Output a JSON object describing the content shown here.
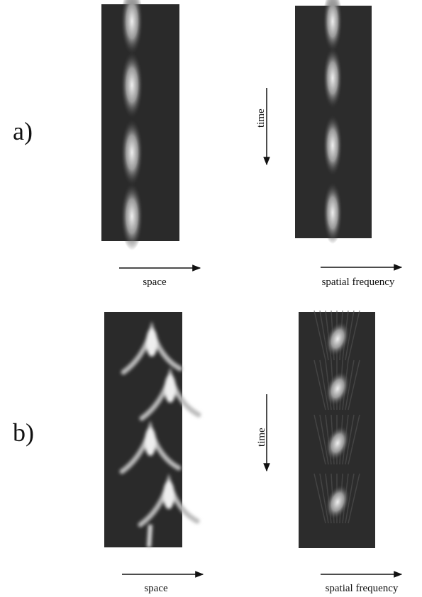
{
  "panels": [
    {
      "label": "a)",
      "time_label": "time",
      "left_axis": "space",
      "right_axis": "spatial frequency"
    },
    {
      "label": "b)",
      "time_label": "time",
      "left_axis": "space",
      "right_axis": "spatial frequency"
    }
  ]
}
